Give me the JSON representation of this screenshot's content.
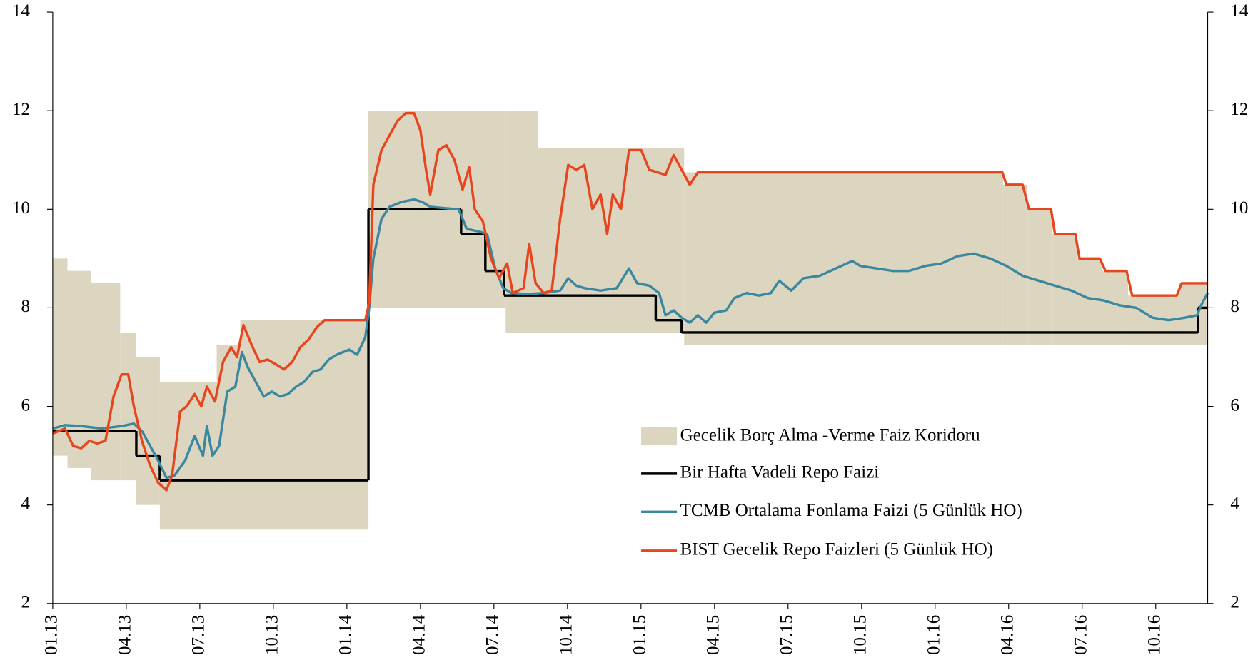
{
  "chart_data": {
    "type": "line",
    "xlim": [
      0,
      47.12
    ],
    "xticks": [
      {
        "value": 0,
        "label": "01.13"
      },
      {
        "value": 3,
        "label": "04.13"
      },
      {
        "value": 6,
        "label": "07.13"
      },
      {
        "value": 9,
        "label": "10.13"
      },
      {
        "value": 12,
        "label": "01.14"
      },
      {
        "value": 15,
        "label": "04.14"
      },
      {
        "value": 18,
        "label": "07.14"
      },
      {
        "value": 21,
        "label": "10.14"
      },
      {
        "value": 24,
        "label": "01.15"
      },
      {
        "value": 27,
        "label": "04.15"
      },
      {
        "value": 30,
        "label": "07.15"
      },
      {
        "value": 33,
        "label": "10.15"
      },
      {
        "value": 36,
        "label": "01.16"
      },
      {
        "value": 39,
        "label": "04.16"
      },
      {
        "value": 42,
        "label": "07.16"
      },
      {
        "value": 45,
        "label": "10.16"
      }
    ],
    "ylim": [
      2,
      14
    ],
    "yticks": [
      2,
      4,
      6,
      8,
      10,
      12,
      14
    ],
    "y2lim": [
      2,
      14
    ],
    "y2ticks": [
      2,
      4,
      6,
      8,
      10,
      12,
      14
    ],
    "series": [
      {
        "name": "Gecelik Borç Alma -Verme Faiz Koridoru",
        "type": "band",
        "color": "#dcd5bf",
        "x": [
          0,
          0.6,
          1.56,
          2.75,
          3.41,
          4.37,
          6.69,
          7.65,
          12.88,
          18.48,
          19.8,
          25.76,
          38.77,
          39.77,
          40.79,
          41.79,
          42.81,
          43.87,
          45.96
        ],
        "high": [
          9,
          8.75,
          8.5,
          7.5,
          7,
          6.5,
          7.25,
          7.75,
          12,
          12,
          11.25,
          10.75,
          10.5,
          10,
          9.5,
          9,
          8.75,
          8.25,
          8.5
        ],
        "low": [
          5,
          4.75,
          4.5,
          4.5,
          4,
          3.5,
          3.5,
          3.5,
          8,
          7.5,
          7.5,
          7.25,
          7.25,
          7.25,
          7.25,
          7.25,
          7.25,
          7.25,
          7.25
        ]
      },
      {
        "name": "Bir Hafta Vadeli Repo Faizi",
        "type": "step",
        "color": "#000000",
        "x": [
          0,
          3.41,
          4.37,
          12.88,
          16.66,
          17.65,
          18.41,
          24.6,
          25.66,
          46.72
        ],
        "values": [
          5.5,
          5,
          4.5,
          10,
          9.5,
          8.75,
          8.25,
          7.75,
          7.5,
          8
        ]
      },
      {
        "name": "TCMB Ortalama Fonlama Faizi (5 Günlük HO)",
        "type": "line",
        "color": "#3a87a0",
        "x": [
          0,
          0.5,
          1.16,
          1.99,
          2.81,
          3.31,
          3.64,
          3.97,
          4.3,
          4.64,
          4.97,
          5.4,
          5.79,
          6.13,
          6.29,
          6.52,
          6.79,
          7.12,
          7.45,
          7.72,
          7.95,
          8.28,
          8.61,
          8.94,
          9.27,
          9.6,
          9.93,
          10.26,
          10.6,
          10.93,
          11.26,
          11.59,
          12.09,
          12.42,
          12.75,
          12.91,
          13.08,
          13.41,
          13.74,
          14.24,
          14.74,
          15.07,
          15.4,
          16.06,
          16.56,
          16.89,
          17.38,
          17.72,
          18.05,
          18.38,
          18.71,
          19.37,
          20.03,
          20.7,
          21.03,
          21.36,
          21.69,
          22.35,
          23.01,
          23.51,
          23.84,
          24.34,
          24.74,
          25,
          25.33,
          25.66,
          25.99,
          26.32,
          26.66,
          26.99,
          27.48,
          27.81,
          28.31,
          28.81,
          29.3,
          29.64,
          30.13,
          30.63,
          31.29,
          31.95,
          32.62,
          32.95,
          33.61,
          34.27,
          34.93,
          35.6,
          36.26,
          36.92,
          37.58,
          38.25,
          38.91,
          39.57,
          40.23,
          40.89,
          41.56,
          42.22,
          42.88,
          43.54,
          44.21,
          44.87,
          45.53,
          46.19,
          46.69,
          46.85,
          47.12
        ],
        "values": [
          5.55,
          5.62,
          5.6,
          5.55,
          5.6,
          5.65,
          5.5,
          5.2,
          4.9,
          4.55,
          4.6,
          4.9,
          5.4,
          5,
          5.6,
          5,
          5.2,
          6.3,
          6.4,
          7.1,
          6.8,
          6.5,
          6.2,
          6.3,
          6.2,
          6.25,
          6.4,
          6.5,
          6.7,
          6.75,
          6.95,
          7.05,
          7.15,
          7.05,
          7.4,
          8,
          9,
          9.8,
          10.05,
          10.15,
          10.2,
          10.15,
          10.05,
          10.02,
          10,
          9.6,
          9.55,
          9.5,
          8.8,
          8.4,
          8.3,
          8.28,
          8.3,
          8.35,
          8.6,
          8.45,
          8.4,
          8.35,
          8.4,
          8.8,
          8.5,
          8.45,
          8.3,
          7.85,
          7.95,
          7.8,
          7.7,
          7.85,
          7.7,
          7.9,
          7.95,
          8.2,
          8.3,
          8.25,
          8.3,
          8.55,
          8.35,
          8.6,
          8.65,
          8.8,
          8.95,
          8.85,
          8.8,
          8.75,
          8.75,
          8.85,
          8.9,
          9.05,
          9.1,
          9,
          8.85,
          8.65,
          8.55,
          8.45,
          8.35,
          8.2,
          8.15,
          8.05,
          8,
          7.8,
          7.75,
          7.8,
          7.85,
          8.05,
          8.3
        ]
      },
      {
        "name": "BIST Gecelik Repo Faizleri (5 Günlük HO)",
        "type": "line",
        "color": "#e8451e",
        "x": [
          0,
          0.5,
          0.83,
          1.16,
          1.49,
          1.82,
          2.15,
          2.48,
          2.81,
          3.08,
          3.31,
          3.64,
          3.97,
          4.3,
          4.64,
          4.87,
          5.2,
          5.46,
          5.79,
          6.06,
          6.29,
          6.62,
          6.95,
          7.28,
          7.52,
          7.78,
          8.11,
          8.44,
          8.77,
          9.11,
          9.44,
          9.77,
          10.1,
          10.43,
          10.76,
          11.09,
          12.09,
          12.75,
          12.91,
          13.08,
          13.41,
          13.74,
          14.07,
          14.4,
          14.74,
          15,
          15.23,
          15.4,
          15.73,
          16.06,
          16.39,
          16.72,
          16.99,
          17.22,
          17.55,
          17.88,
          18.21,
          18.54,
          18.77,
          19.21,
          19.44,
          19.7,
          20.03,
          20.36,
          20.7,
          21.03,
          21.36,
          21.69,
          22.02,
          22.35,
          22.62,
          22.85,
          23.18,
          23.51,
          24.01,
          24.34,
          24.67,
          25,
          25.33,
          25.66,
          25.99,
          26.32,
          30.96,
          38.74,
          38.91,
          39.57,
          39.83,
          40.73,
          40.89,
          41.72,
          41.89,
          42.72,
          42.95,
          43.81,
          44.04,
          45.86,
          46.06,
          47.12
        ],
        "values": [
          5.45,
          5.55,
          5.2,
          5.15,
          5.3,
          5.25,
          5.3,
          6.2,
          6.65,
          6.65,
          6,
          5.3,
          4.8,
          4.45,
          4.3,
          4.6,
          5.9,
          6,
          6.25,
          6,
          6.4,
          6.1,
          6.9,
          7.2,
          7,
          7.65,
          7.25,
          6.9,
          6.95,
          6.85,
          6.75,
          6.9,
          7.2,
          7.35,
          7.6,
          7.75,
          7.75,
          7.75,
          8.1,
          10.5,
          11.2,
          11.5,
          11.8,
          11.95,
          11.95,
          11.6,
          10.8,
          10.3,
          11.2,
          11.3,
          11,
          10.4,
          10.85,
          10,
          9.75,
          9,
          8.6,
          8.9,
          8.3,
          8.4,
          9.3,
          8.5,
          8.3,
          8.35,
          9.8,
          10.9,
          10.8,
          10.9,
          10,
          10.3,
          9.5,
          10.3,
          10,
          11.2,
          11.2,
          10.8,
          10.75,
          10.7,
          11.1,
          10.8,
          10.5,
          10.75,
          10.75,
          10.75,
          10.5,
          10.5,
          10,
          10,
          9.5,
          9.5,
          9,
          9,
          8.75,
          8.75,
          8.25,
          8.25,
          8.5,
          8.5
        ]
      }
    ]
  }
}
